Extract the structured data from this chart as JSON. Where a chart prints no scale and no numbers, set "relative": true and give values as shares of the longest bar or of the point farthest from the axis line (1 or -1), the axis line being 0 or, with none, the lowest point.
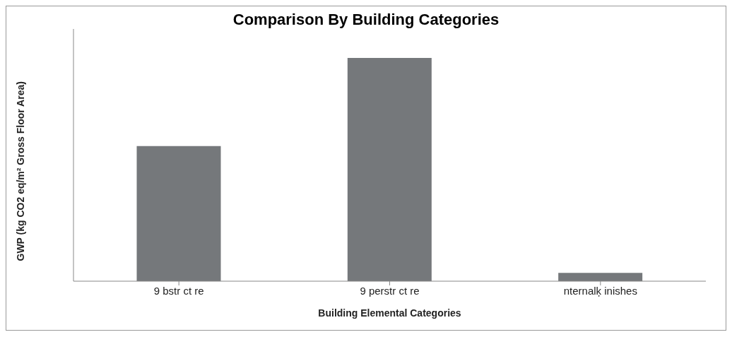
{
  "chart_data": {
    "type": "bar",
    "title": "Comparison By Building Categories",
    "xlabel": "Building Elemental Categories",
    "ylabel": "GWP (kg CO2 eq/m² Gross Floor Area)",
    "categories": [
      "9 bstr ct re",
      "9 perstr ct re",
      "nternalķ inishes"
    ],
    "values": [
      0.605,
      1,
      0.037
    ],
    "color": "#75787b",
    "relative": true,
    "grid": false,
    "legend": false
  }
}
